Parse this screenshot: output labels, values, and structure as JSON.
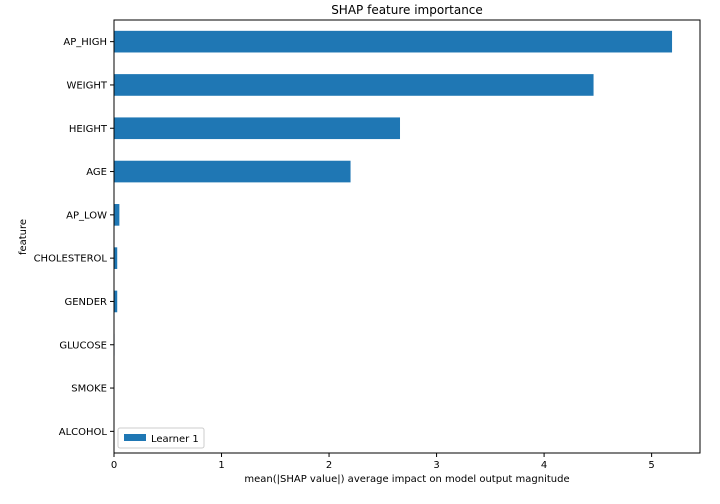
{
  "chart_data": {
    "type": "bar",
    "orientation": "horizontal",
    "title": "SHAP feature importance",
    "xlabel": "mean(|SHAP value|) average impact on model output magnitude",
    "ylabel": "feature",
    "categories": [
      "AP_HIGH",
      "WEIGHT",
      "HEIGHT",
      "AGE",
      "AP_LOW",
      "CHOLESTEROL",
      "GENDER",
      "GLUCOSE",
      "SMOKE",
      "ALCOHOL"
    ],
    "series": [
      {
        "name": "Learner 1",
        "values": [
          5.19,
          4.46,
          2.66,
          2.2,
          0.05,
          0.03,
          0.03,
          0.005,
          0.003,
          0.002
        ],
        "color": "#1f77b4"
      }
    ],
    "xlim": [
      0,
      5.45
    ],
    "xticks": [
      0,
      1,
      2,
      3,
      4,
      5
    ],
    "grid": false,
    "legend_position": "lower-left"
  }
}
